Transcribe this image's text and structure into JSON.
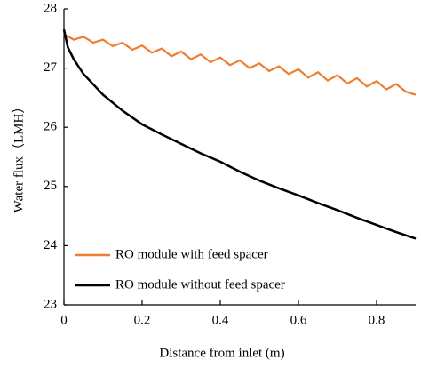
{
  "chart_data": {
    "type": "line",
    "xlabel": "Distance from inlet (m)",
    "ylabel": "Water flux（LMH）",
    "xlim": [
      0,
      0.9
    ],
    "xticks": [
      0,
      0.2,
      0.4,
      0.6,
      0.8
    ],
    "ylim": [
      23,
      28
    ],
    "yticks": [
      23,
      24,
      25,
      26,
      27,
      28
    ],
    "legend": "lower left",
    "series": [
      {
        "name": "RO module with feed spacer",
        "color": "#ed7d31",
        "x": [
          0,
          0.025,
          0.05,
          0.075,
          0.1,
          0.125,
          0.15,
          0.175,
          0.2,
          0.225,
          0.25,
          0.275,
          0.3,
          0.325,
          0.35,
          0.375,
          0.4,
          0.425,
          0.45,
          0.475,
          0.5,
          0.525,
          0.55,
          0.575,
          0.6,
          0.625,
          0.65,
          0.675,
          0.7,
          0.725,
          0.75,
          0.775,
          0.8,
          0.825,
          0.85,
          0.875,
          0.9
        ],
        "values": [
          27.57,
          27.48,
          27.53,
          27.43,
          27.48,
          27.37,
          27.43,
          27.31,
          27.38,
          27.26,
          27.33,
          27.2,
          27.28,
          27.15,
          27.23,
          27.1,
          27.18,
          27.05,
          27.13,
          27.0,
          27.08,
          26.95,
          27.03,
          26.9,
          26.98,
          26.84,
          26.93,
          26.79,
          26.88,
          26.74,
          26.83,
          26.69,
          26.78,
          26.64,
          26.73,
          26.6,
          26.55
        ]
      },
      {
        "name": "RO module without feed spacer",
        "color": "#000000",
        "x": [
          0,
          0.01,
          0.025,
          0.05,
          0.1,
          0.15,
          0.2,
          0.25,
          0.3,
          0.35,
          0.4,
          0.45,
          0.5,
          0.55,
          0.6,
          0.65,
          0.7,
          0.75,
          0.8,
          0.85,
          0.9
        ],
        "values": [
          27.65,
          27.35,
          27.15,
          26.9,
          26.55,
          26.28,
          26.05,
          25.88,
          25.72,
          25.56,
          25.42,
          25.25,
          25.1,
          24.97,
          24.85,
          24.72,
          24.6,
          24.47,
          24.35,
          24.23,
          24.12
        ]
      }
    ]
  }
}
